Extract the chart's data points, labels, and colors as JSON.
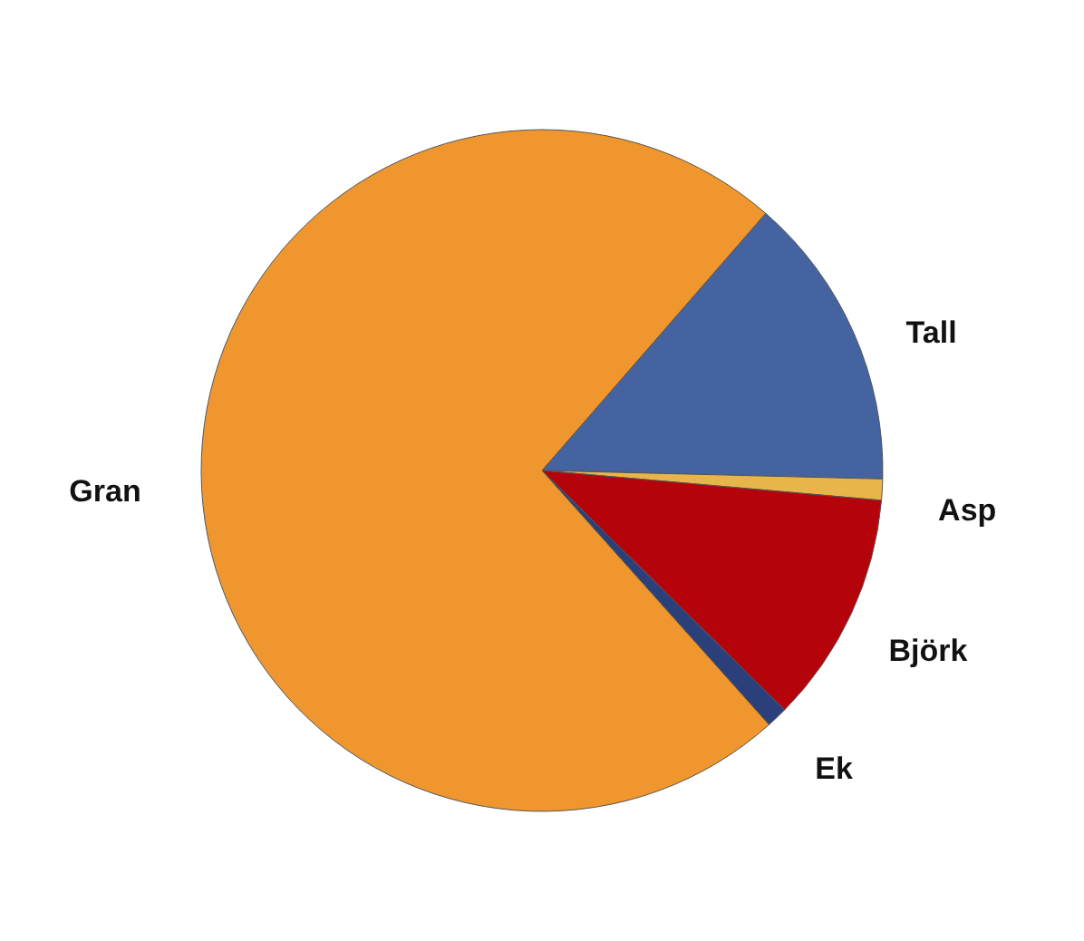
{
  "chart_data": {
    "type": "pie",
    "categories": [
      "Tall",
      "Asp",
      "Björk",
      "Ek",
      "Gran"
    ],
    "values": [
      14,
      1,
      11,
      1,
      73
    ],
    "colors": [
      "#4463a0",
      "#e8b54a",
      "#b5030b",
      "#2b3f7a",
      "#f0962f"
    ],
    "legend": false
  }
}
